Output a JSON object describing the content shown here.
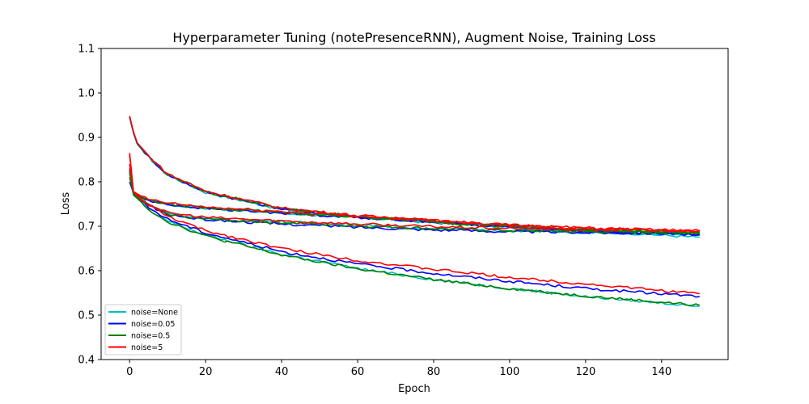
{
  "chart_data": {
    "type": "line",
    "title": "Hyperparameter Tuning (notePresenceRNN), Augment Noise, Training Loss",
    "xlabel": "Epoch",
    "ylabel": "Loss",
    "xlim": [
      -7.5,
      157.5
    ],
    "ylim": [
      0.4,
      1.1
    ],
    "xticks": [
      "0",
      "20",
      "40",
      "60",
      "80",
      "100",
      "120",
      "140"
    ],
    "yticks": [
      "0.4",
      "0.5",
      "0.6",
      "0.7",
      "0.8",
      "0.9",
      "1.0",
      "1.1"
    ],
    "grid": false,
    "legend_position": "lower-left",
    "series": [
      {
        "name": "noise=None",
        "color": "#00bfbf",
        "curves": [
          {
            "x": [
              0,
              1,
              2,
              5,
              10,
              20,
              40,
              60,
              80,
              100,
              120,
              150
            ],
            "y": [
              0.945,
              0.91,
              0.885,
              0.855,
              0.815,
              0.776,
              0.738,
              0.72,
              0.708,
              0.697,
              0.69,
              0.675
            ]
          },
          {
            "x": [
              0,
              1,
              3,
              5,
              10,
              20,
              40,
              60,
              80,
              100,
              120,
              150
            ],
            "y": [
              0.82,
              0.775,
              0.765,
              0.758,
              0.75,
              0.74,
              0.73,
              0.72,
              0.71,
              0.7,
              0.69,
              0.682
            ]
          },
          {
            "x": [
              0,
              1,
              3,
              5,
              10,
              20,
              40,
              60,
              80,
              100,
              120,
              150
            ],
            "y": [
              0.81,
              0.775,
              0.758,
              0.75,
              0.728,
              0.717,
              0.71,
              0.703,
              0.695,
              0.69,
              0.686,
              0.684
            ]
          },
          {
            "x": [
              0,
              1,
              3,
              5,
              10,
              20,
              40,
              60,
              80,
              100,
              120,
              150
            ],
            "y": [
              0.82,
              0.77,
              0.755,
              0.74,
              0.712,
              0.68,
              0.637,
              0.605,
              0.58,
              0.56,
              0.542,
              0.52
            ]
          }
        ]
      },
      {
        "name": "noise=0.05",
        "color": "#0000ff",
        "curves": [
          {
            "x": [
              0,
              1,
              2,
              5,
              10,
              20,
              40,
              60,
              80,
              100,
              120,
              150
            ],
            "y": [
              0.946,
              0.911,
              0.886,
              0.856,
              0.816,
              0.777,
              0.739,
              0.721,
              0.709,
              0.698,
              0.69,
              0.68
            ]
          },
          {
            "x": [
              0,
              1,
              3,
              5,
              10,
              20,
              40,
              60,
              80,
              100,
              120,
              150
            ],
            "y": [
              0.825,
              0.776,
              0.766,
              0.757,
              0.749,
              0.74,
              0.73,
              0.72,
              0.71,
              0.7,
              0.69,
              0.681
            ]
          },
          {
            "x": [
              0,
              1,
              3,
              5,
              10,
              20,
              40,
              60,
              80,
              100,
              120,
              150
            ],
            "y": [
              0.8,
              0.775,
              0.757,
              0.748,
              0.726,
              0.715,
              0.705,
              0.698,
              0.692,
              0.688,
              0.686,
              0.683
            ]
          },
          {
            "x": [
              0,
              1,
              3,
              5,
              10,
              20,
              40,
              60,
              80,
              100,
              120,
              150
            ],
            "y": [
              0.83,
              0.775,
              0.758,
              0.742,
              0.716,
              0.685,
              0.643,
              0.615,
              0.594,
              0.576,
              0.56,
              0.542
            ]
          }
        ]
      },
      {
        "name": "noise=0.5",
        "color": "#008000",
        "curves": [
          {
            "x": [
              0,
              1,
              2,
              5,
              10,
              20,
              40,
              60,
              80,
              100,
              120,
              150
            ],
            "y": [
              0.947,
              0.912,
              0.887,
              0.857,
              0.817,
              0.778,
              0.74,
              0.722,
              0.71,
              0.699,
              0.692,
              0.684
            ]
          },
          {
            "x": [
              0,
              1,
              3,
              5,
              10,
              20,
              40,
              60,
              80,
              100,
              120,
              150
            ],
            "y": [
              0.823,
              0.777,
              0.766,
              0.758,
              0.75,
              0.741,
              0.731,
              0.721,
              0.712,
              0.701,
              0.693,
              0.686
            ]
          },
          {
            "x": [
              0,
              1,
              3,
              5,
              10,
              20,
              40,
              60,
              80,
              100,
              120,
              150
            ],
            "y": [
              0.81,
              0.776,
              0.758,
              0.749,
              0.727,
              0.716,
              0.708,
              0.701,
              0.695,
              0.69,
              0.688,
              0.685
            ]
          },
          {
            "x": [
              0,
              1,
              3,
              5,
              10,
              20,
              40,
              60,
              80,
              100,
              120,
              150
            ],
            "y": [
              0.825,
              0.771,
              0.755,
              0.738,
              0.71,
              0.678,
              0.635,
              0.604,
              0.58,
              0.56,
              0.543,
              0.522
            ]
          }
        ]
      },
      {
        "name": "noise=5",
        "color": "#ff0000",
        "curves": [
          {
            "x": [
              0,
              1,
              2,
              5,
              10,
              20,
              40,
              60,
              80,
              100,
              120,
              150
            ],
            "y": [
              0.948,
              0.913,
              0.888,
              0.858,
              0.818,
              0.779,
              0.741,
              0.724,
              0.713,
              0.703,
              0.696,
              0.69
            ]
          },
          {
            "x": [
              0,
              1,
              3,
              5,
              10,
              20,
              40,
              60,
              80,
              100,
              120,
              150
            ],
            "y": [
              0.86,
              0.778,
              0.768,
              0.76,
              0.752,
              0.743,
              0.733,
              0.723,
              0.713,
              0.703,
              0.695,
              0.688
            ]
          },
          {
            "x": [
              0,
              1,
              3,
              5,
              10,
              20,
              40,
              60,
              80,
              100,
              120,
              150
            ],
            "y": [
              0.865,
              0.778,
              0.76,
              0.75,
              0.73,
              0.72,
              0.712,
              0.705,
              0.699,
              0.695,
              0.692,
              0.69
            ]
          },
          {
            "x": [
              0,
              1,
              3,
              5,
              10,
              20,
              40,
              60,
              80,
              100,
              120,
              150
            ],
            "y": [
              0.84,
              0.778,
              0.762,
              0.748,
              0.722,
              0.69,
              0.65,
              0.623,
              0.603,
              0.585,
              0.57,
              0.548
            ]
          }
        ]
      }
    ]
  }
}
